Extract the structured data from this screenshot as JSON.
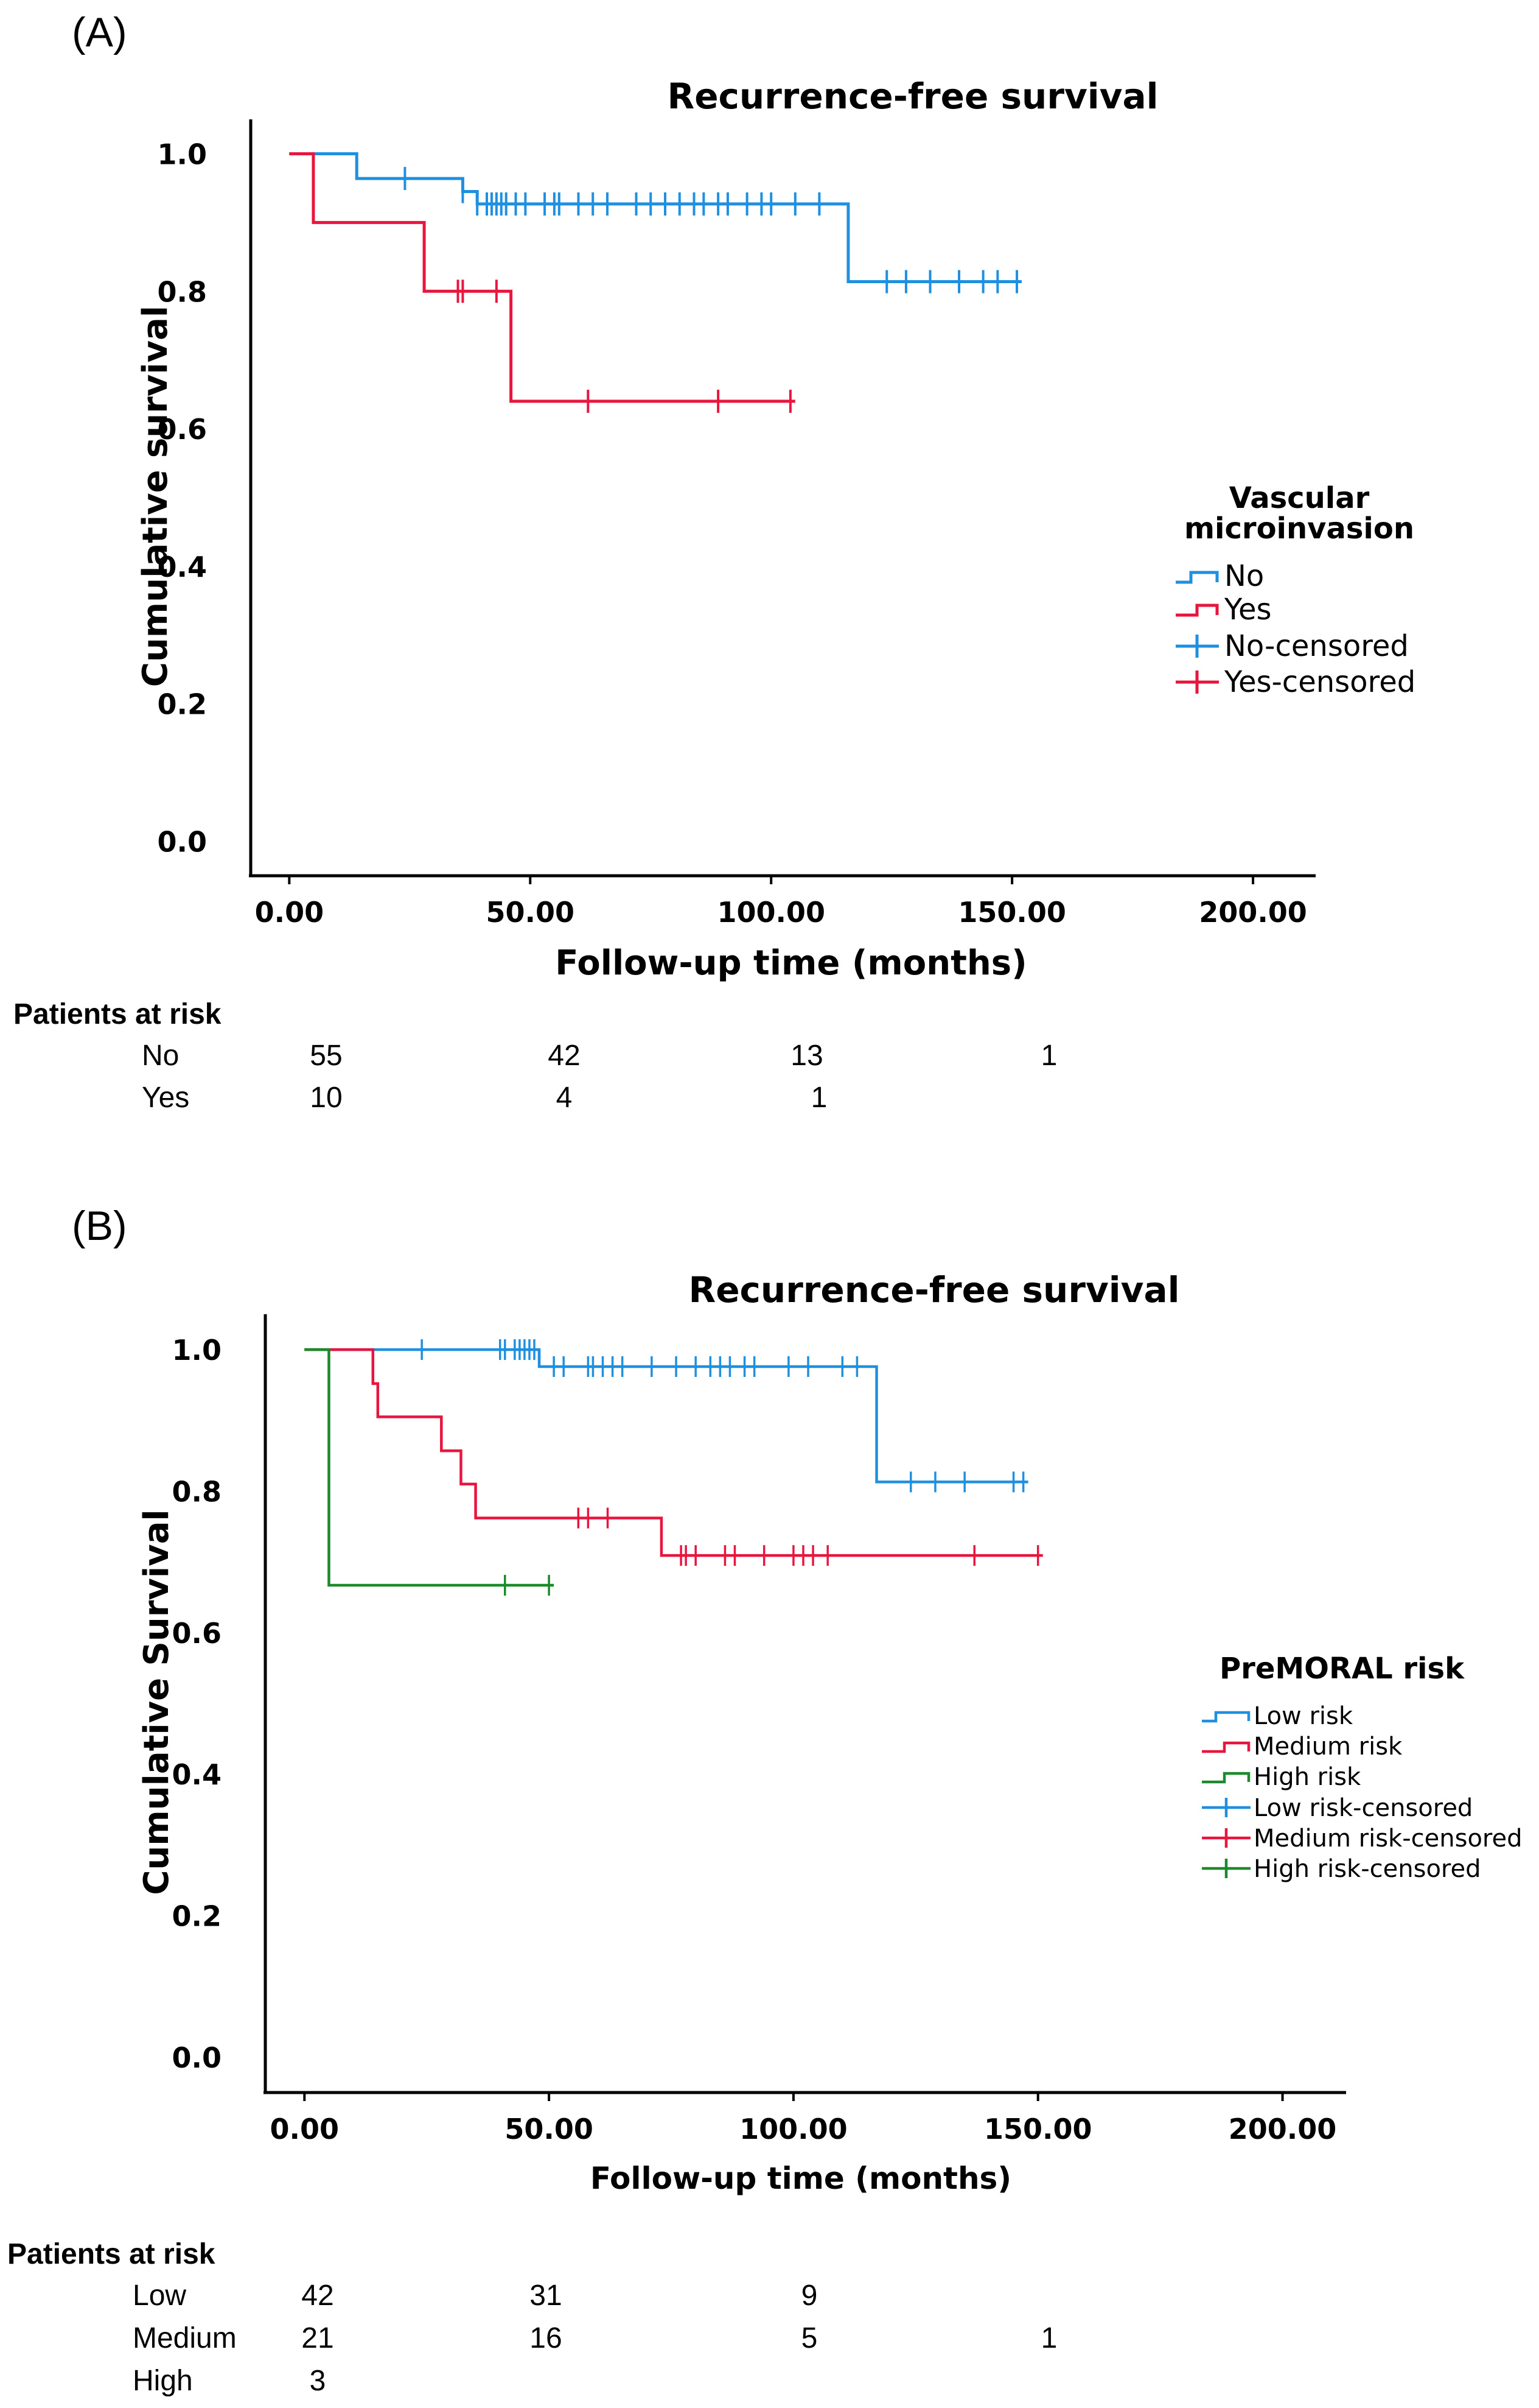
{
  "figure": {
    "panel_a_label": "(A)",
    "panel_b_label": "(B)"
  },
  "colors": {
    "no": "#1f8fe0",
    "yes": "#e8163f",
    "low": "#1f8fe0",
    "medium": "#e8163f",
    "high": "#1a8a2a"
  },
  "chart_data": [
    {
      "type": "line",
      "subtype": "kaplan-meier",
      "title": "Recurrence-free survival",
      "xlabel": "Follow-up time (months)",
      "ylabel": "Cumulative survival",
      "xlim": [
        -8,
        213
      ],
      "ylim": [
        -0.05,
        1.05
      ],
      "xticks": [
        0,
        50,
        100,
        150,
        200
      ],
      "xtick_labels": [
        "0.00",
        "50.00",
        "100.00",
        "150.00",
        "200.00"
      ],
      "yticks": [
        0,
        0.2,
        0.4,
        0.6,
        0.8,
        1.0
      ],
      "ytick_labels": [
        "0.0",
        "0.2",
        "0.4",
        "0.6",
        "0.8",
        "1.0"
      ],
      "legend": {
        "title_line1": "Vascular",
        "title_line2": "microinvasion",
        "placement": "right",
        "entries": [
          "No",
          "Yes",
          "No-censored",
          "Yes-censored"
        ]
      },
      "series": [
        {
          "name": "No",
          "color_key": "no",
          "steps": [
            [
              0,
              1.0
            ],
            [
              13,
              1.0
            ],
            [
              14,
              0.964
            ],
            [
              35,
              0.964
            ],
            [
              36,
              0.945
            ],
            [
              39,
              0.927
            ],
            [
              115,
              0.927
            ],
            [
              116,
              0.814
            ],
            [
              152,
              0.814
            ]
          ],
          "censored": [
            [
              24,
              0.964
            ],
            [
              36,
              0.945
            ],
            [
              39,
              0.927
            ],
            [
              41,
              0.927
            ],
            [
              42,
              0.927
            ],
            [
              43,
              0.927
            ],
            [
              44,
              0.927
            ],
            [
              45,
              0.927
            ],
            [
              47,
              0.927
            ],
            [
              49,
              0.927
            ],
            [
              53,
              0.927
            ],
            [
              55,
              0.927
            ],
            [
              56,
              0.927
            ],
            [
              60,
              0.927
            ],
            [
              63,
              0.927
            ],
            [
              66,
              0.927
            ],
            [
              72,
              0.927
            ],
            [
              75,
              0.927
            ],
            [
              78,
              0.927
            ],
            [
              81,
              0.927
            ],
            [
              84,
              0.927
            ],
            [
              86,
              0.927
            ],
            [
              89,
              0.927
            ],
            [
              91,
              0.927
            ],
            [
              95,
              0.927
            ],
            [
              98,
              0.927
            ],
            [
              100,
              0.927
            ],
            [
              105,
              0.927
            ],
            [
              110,
              0.927
            ],
            [
              124,
              0.814
            ],
            [
              128,
              0.814
            ],
            [
              133,
              0.814
            ],
            [
              139,
              0.814
            ],
            [
              144,
              0.814
            ],
            [
              147,
              0.814
            ],
            [
              151,
              0.814
            ]
          ]
        },
        {
          "name": "Yes",
          "color_key": "yes",
          "steps": [
            [
              0,
              1.0
            ],
            [
              5,
              1.0
            ],
            [
              5,
              0.9
            ],
            [
              28,
              0.9
            ],
            [
              28,
              0.8
            ],
            [
              46,
              0.8
            ],
            [
              46,
              0.64
            ],
            [
              105,
              0.64
            ]
          ],
          "censored": [
            [
              35,
              0.8
            ],
            [
              36,
              0.8
            ],
            [
              43,
              0.8
            ],
            [
              62,
              0.64
            ],
            [
              89,
              0.64
            ],
            [
              104,
              0.64
            ]
          ]
        }
      ],
      "risk_table": {
        "header": "Patients at risk",
        "time_points": [
          0,
          50,
          100,
          150
        ],
        "rows": [
          {
            "label": "No",
            "values": [
              "55",
              "42",
              "13",
              "1"
            ]
          },
          {
            "label": "Yes",
            "values": [
              "10",
              "4",
              "1",
              ""
            ]
          }
        ]
      }
    },
    {
      "type": "line",
      "subtype": "kaplan-meier",
      "title": "Recurrence-free survival",
      "xlabel": "Follow-up time (months)",
      "ylabel": "Cumulative Survival",
      "xlim": [
        -8,
        213
      ],
      "ylim": [
        -0.05,
        1.05
      ],
      "xticks": [
        0,
        50,
        100,
        150,
        200
      ],
      "xtick_labels": [
        "0.00",
        "50.00",
        "100.00",
        "150.00",
        "200.00"
      ],
      "yticks": [
        0,
        0.2,
        0.4,
        0.6,
        0.8,
        1.0
      ],
      "ytick_labels": [
        "0.0",
        "0.2",
        "0.4",
        "0.6",
        "0.8",
        "1.0"
      ],
      "legend": {
        "title": "PreMORAL risk",
        "placement": "right",
        "entries": [
          "Low risk",
          "Medium risk",
          "High risk",
          "Low risk-censored",
          "Medium risk-censored",
          "High risk-censored"
        ]
      },
      "series": [
        {
          "name": "Low risk",
          "color_key": "low",
          "steps": [
            [
              0,
              1.0
            ],
            [
              48,
              1.0
            ],
            [
              48,
              0.976
            ],
            [
              117,
              0.976
            ],
            [
              117,
              0.813
            ],
            [
              148,
              0.813
            ]
          ],
          "censored": [
            [
              24,
              1.0
            ],
            [
              40,
              1.0
            ],
            [
              41,
              1.0
            ],
            [
              43,
              1.0
            ],
            [
              44,
              1.0
            ],
            [
              45,
              1.0
            ],
            [
              46,
              1.0
            ],
            [
              47,
              1.0
            ],
            [
              51,
              0.976
            ],
            [
              53,
              0.976
            ],
            [
              58,
              0.976
            ],
            [
              59,
              0.976
            ],
            [
              61,
              0.976
            ],
            [
              63,
              0.976
            ],
            [
              65,
              0.976
            ],
            [
              71,
              0.976
            ],
            [
              76,
              0.976
            ],
            [
              80,
              0.976
            ],
            [
              83,
              0.976
            ],
            [
              85,
              0.976
            ],
            [
              87,
              0.976
            ],
            [
              90,
              0.976
            ],
            [
              92,
              0.976
            ],
            [
              99,
              0.976
            ],
            [
              103,
              0.976
            ],
            [
              110,
              0.976
            ],
            [
              113,
              0.976
            ],
            [
              124,
              0.813
            ],
            [
              129,
              0.813
            ],
            [
              135,
              0.813
            ],
            [
              145,
              0.813
            ],
            [
              147,
              0.813
            ]
          ]
        },
        {
          "name": "Medium risk",
          "color_key": "medium",
          "steps": [
            [
              0,
              1.0
            ],
            [
              14,
              1.0
            ],
            [
              14,
              0.952
            ],
            [
              15,
              0.952
            ],
            [
              15,
              0.905
            ],
            [
              28,
              0.905
            ],
            [
              28,
              0.857
            ],
            [
              32,
              0.857
            ],
            [
              32,
              0.81
            ],
            [
              35,
              0.81
            ],
            [
              35,
              0.762
            ],
            [
              73,
              0.762
            ],
            [
              73,
              0.709
            ],
            [
              151,
              0.709
            ]
          ],
          "censored": [
            [
              56,
              0.762
            ],
            [
              58,
              0.762
            ],
            [
              62,
              0.762
            ],
            [
              77,
              0.709
            ],
            [
              78,
              0.709
            ],
            [
              80,
              0.709
            ],
            [
              86,
              0.709
            ],
            [
              88,
              0.709
            ],
            [
              94,
              0.709
            ],
            [
              100,
              0.709
            ],
            [
              102,
              0.709
            ],
            [
              104,
              0.709
            ],
            [
              107,
              0.709
            ],
            [
              137,
              0.709
            ],
            [
              150,
              0.709
            ]
          ]
        },
        {
          "name": "High risk",
          "color_key": "high",
          "steps": [
            [
              0,
              1.0
            ],
            [
              5,
              1.0
            ],
            [
              5,
              0.667
            ],
            [
              51,
              0.667
            ]
          ],
          "censored": [
            [
              41,
              0.667
            ],
            [
              50,
              0.667
            ]
          ]
        }
      ],
      "risk_table": {
        "header": "Patients at risk",
        "time_points": [
          0,
          50,
          100,
          150
        ],
        "rows": [
          {
            "label": "Low",
            "values": [
              "42",
              "31",
              "9",
              ""
            ]
          },
          {
            "label": "Medium",
            "values": [
              "21",
              "16",
              "5",
              "1"
            ]
          },
          {
            "label": "High",
            "values": [
              "3",
              "",
              "",
              ""
            ]
          }
        ]
      }
    }
  ]
}
